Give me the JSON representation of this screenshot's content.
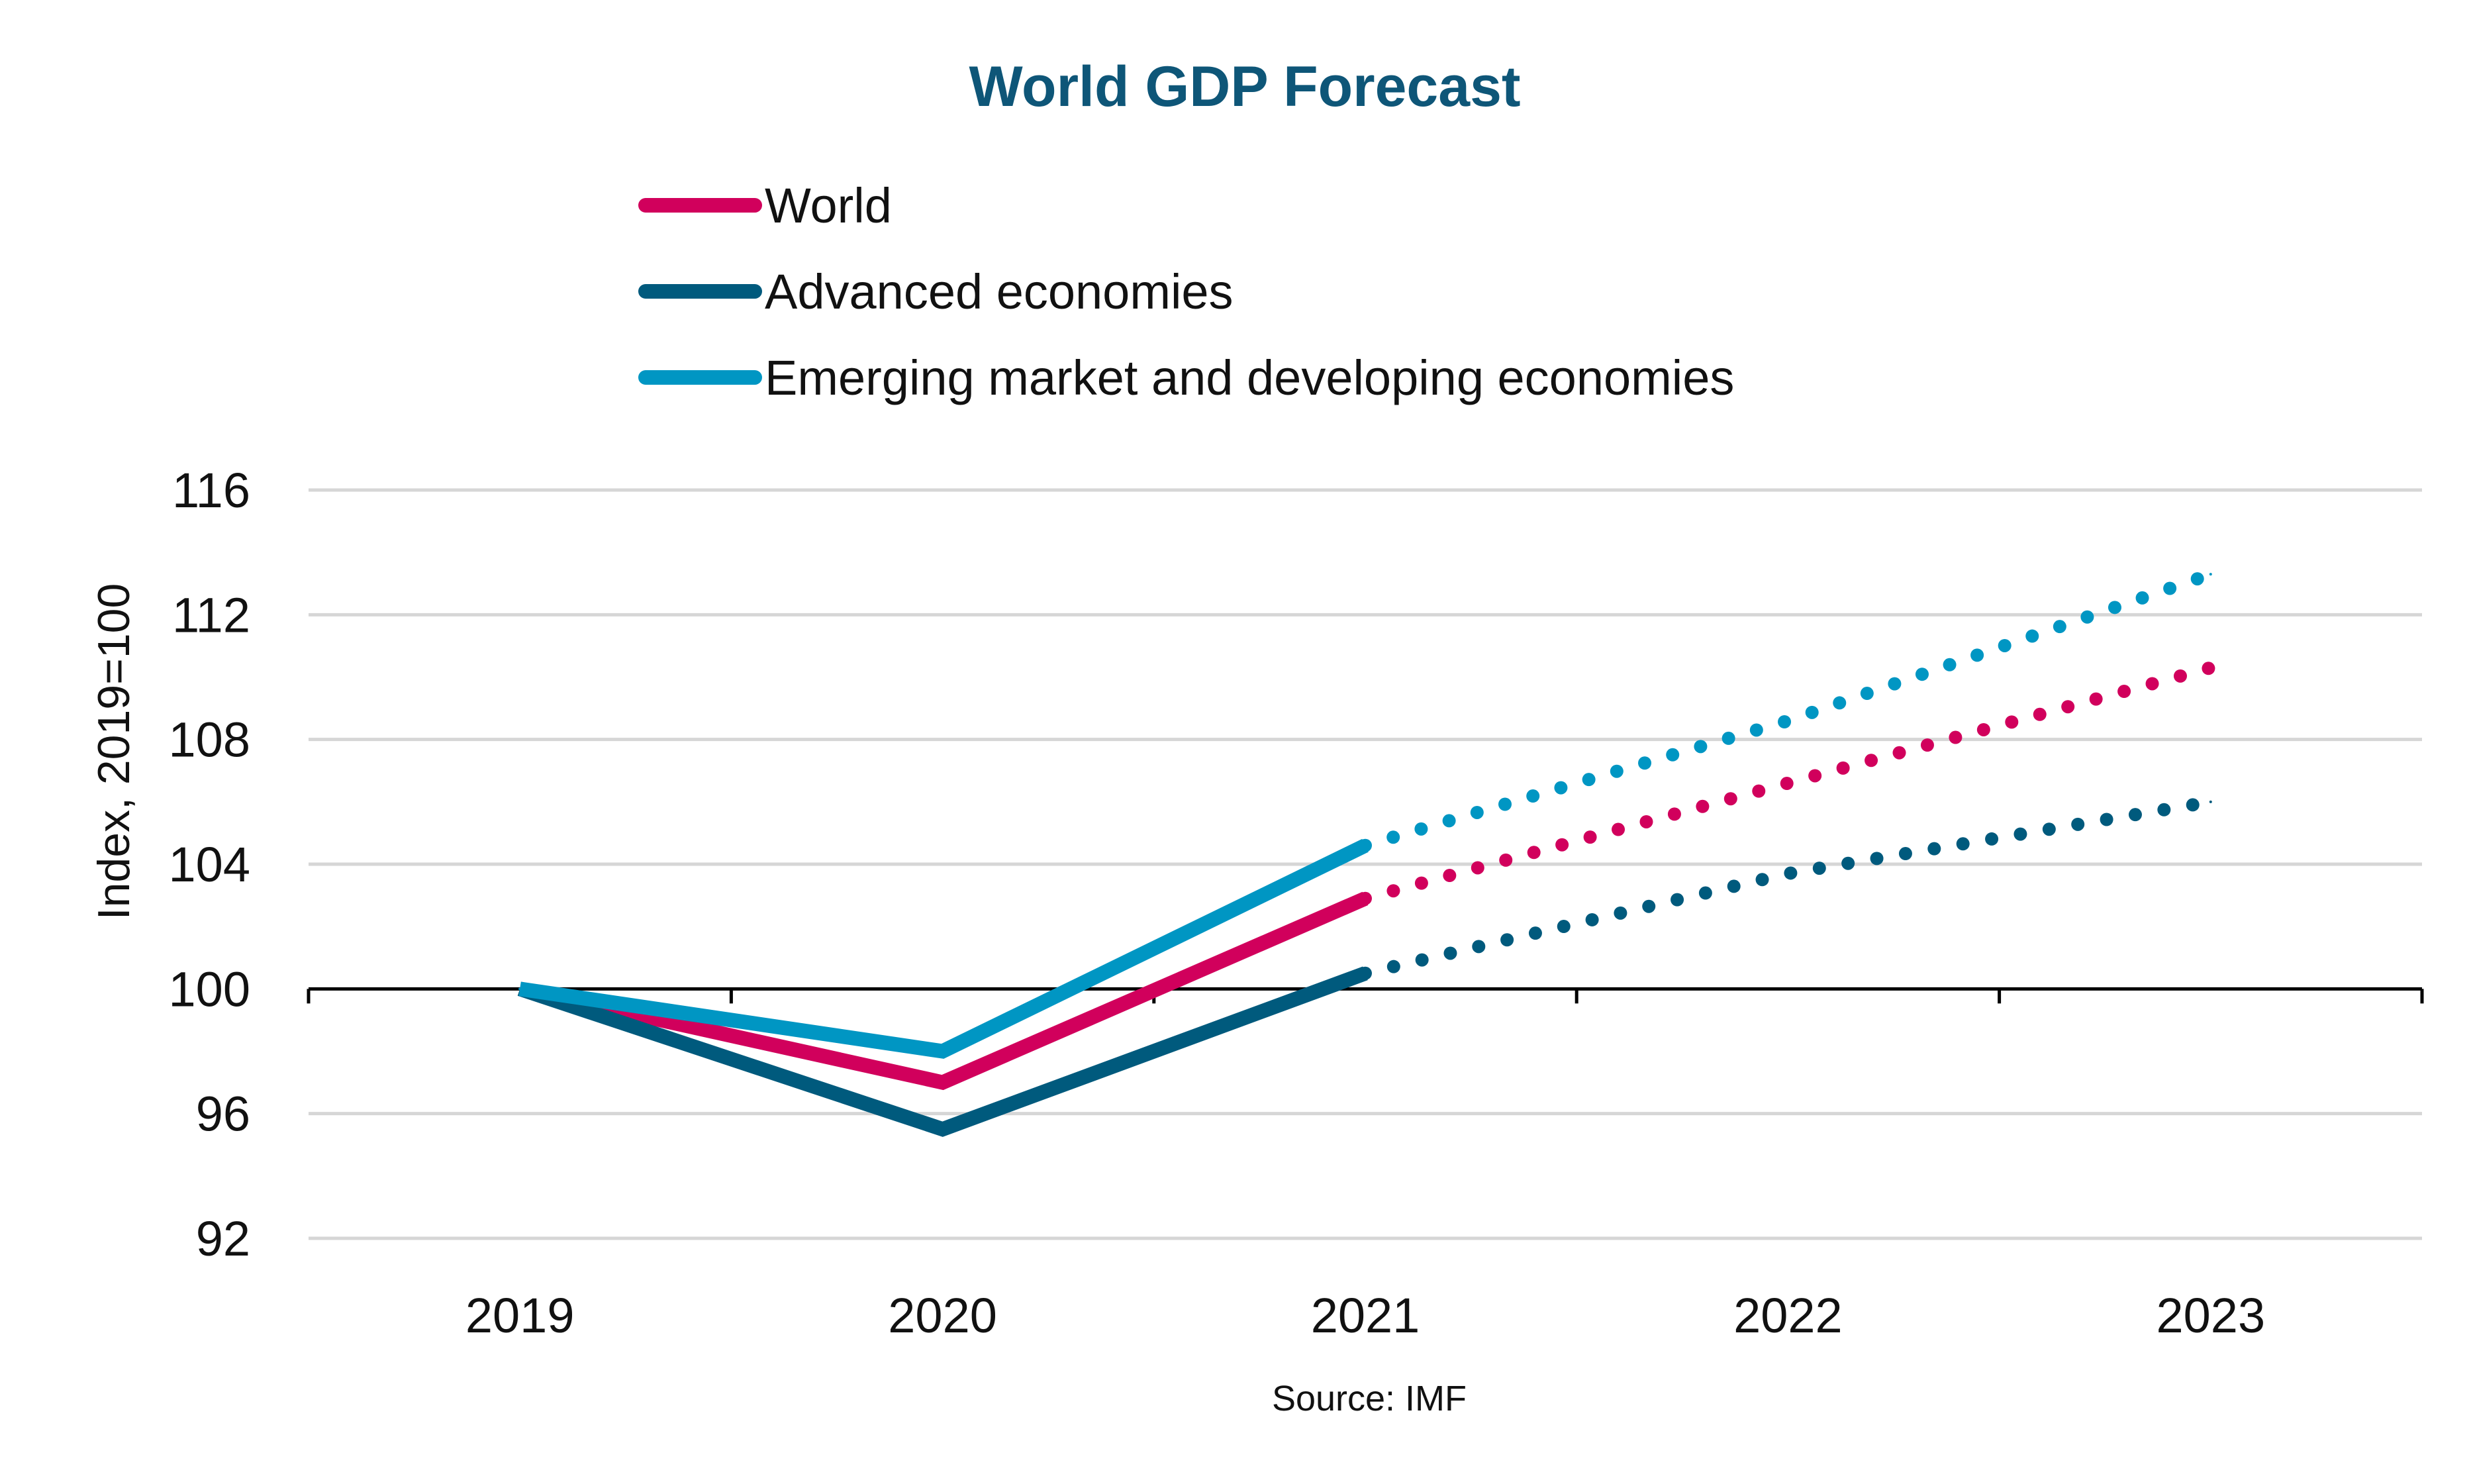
{
  "chart_data": {
    "type": "line",
    "title": "World GDP Forecast",
    "ylabel": "Index, 2019=100",
    "xlabel": "",
    "source": "Source: IMF",
    "categories": [
      "2019",
      "2020",
      "2021",
      "2022",
      "2023"
    ],
    "yticks": [
      "92",
      "96",
      "100",
      "104",
      "108",
      "112",
      "116"
    ],
    "ylim": [
      92,
      116
    ],
    "grid": true,
    "legend_position": "top",
    "forecast_from": "2021",
    "series": [
      {
        "name": "World",
        "color": "#d1005c",
        "values": [
          100,
          97,
          102.9,
          106.6,
          110.3
        ]
      },
      {
        "name": "Advanced economies",
        "color": "#005a7d",
        "values": [
          100,
          95.5,
          100.5,
          103.7,
          106.0
        ]
      },
      {
        "name": "Emerging market and developing economies",
        "color": "#0096c3",
        "values": [
          100,
          98.0,
          104.6,
          108.6,
          113.3
        ]
      }
    ]
  },
  "colors": {
    "title": "#0e5678",
    "grid": "#d6d6d6",
    "axis": "#000000"
  }
}
